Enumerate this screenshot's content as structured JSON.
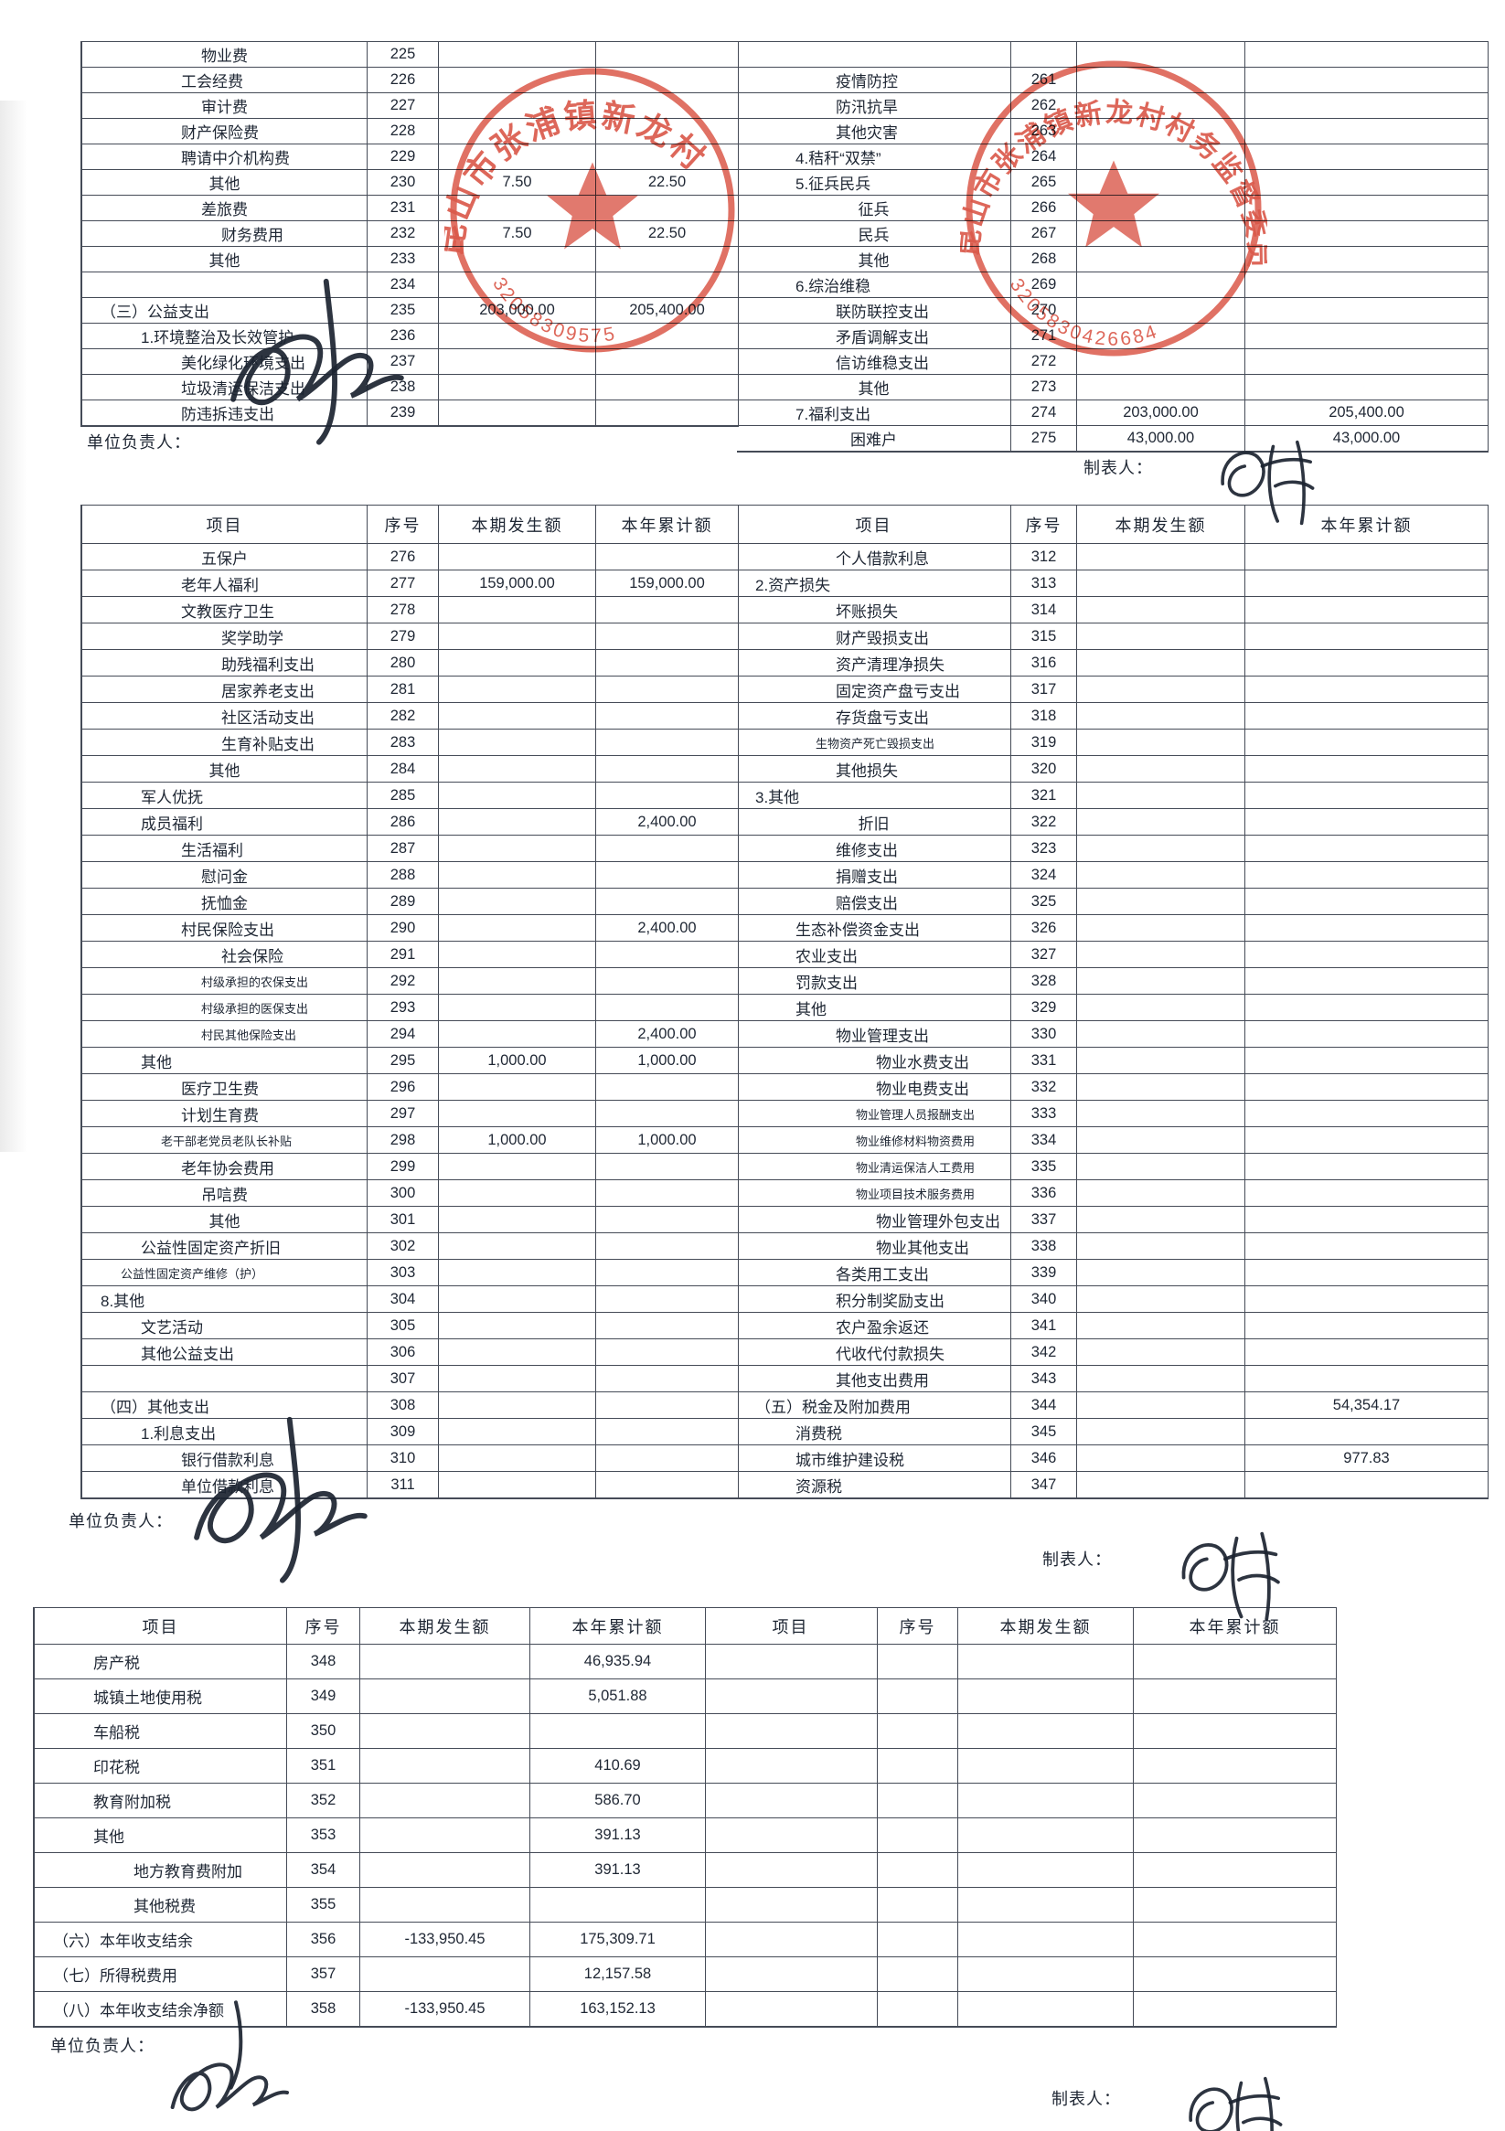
{
  "page": {
    "ink": "#1f2734",
    "line": "#454b57",
    "stamp_red": "#d5402f",
    "paper": "#ffffff"
  },
  "labels": {
    "responsible": "单位负责人：",
    "preparer": "制表人："
  },
  "headers": {
    "item": "项目",
    "no": "序号",
    "current": "本期发生额",
    "cumulative": "本年累计额"
  },
  "stamps": [
    {
      "arc_text": "昆山市张浦镇新龙村",
      "code": "32058309575"
    },
    {
      "arc_text": "昆山市张浦镇新龙村村务监督委员会",
      "code": "3205830426684"
    }
  ],
  "tables": [
    {
      "name": "expense-detail-top",
      "header": false,
      "right_leading_blank": true,
      "left_rows": [
        [
          "物业费",
          "225",
          "",
          "",
          2
        ],
        [
          "工会经费",
          "226",
          "",
          "",
          2
        ],
        [
          "审计费",
          "227",
          "",
          "",
          2
        ],
        [
          "财产保险费",
          "228",
          "",
          "",
          2
        ],
        [
          "聘请中介机构费",
          "229",
          "",
          "",
          2
        ],
        [
          "其他",
          "230",
          "7.50",
          "22.50",
          2
        ],
        [
          "差旅费",
          "231",
          "",
          "",
          3
        ],
        [
          "财务费用",
          "232",
          "7.50",
          "22.50",
          3
        ],
        [
          "其他",
          "233",
          "",
          "",
          3
        ],
        [
          "",
          "234",
          "",
          "",
          0
        ],
        [
          "（三）公益支出",
          "235",
          "203,000.00",
          "205,400.00",
          0
        ],
        [
          "1.环境整治及长效管护",
          "236",
          "",
          "",
          1
        ],
        [
          "美化绿化环境支出",
          "237",
          "",
          "",
          2
        ],
        [
          "垃圾清运保洁支出",
          "238",
          "",
          "",
          2
        ],
        [
          "防违拆违支出",
          "239",
          "",
          "",
          2
        ]
      ],
      "right_rows": [
        [
          "疫情防控",
          "261",
          "",
          "",
          2
        ],
        [
          "防汛抗旱",
          "262",
          "",
          "",
          2
        ],
        [
          "其他灾害",
          "263",
          "",
          "",
          2
        ],
        [
          "4.秸秆“双禁”",
          "264",
          "",
          "",
          1
        ],
        [
          "5.征兵民兵",
          "265",
          "",
          "",
          1
        ],
        [
          "征兵",
          "266",
          "",
          "",
          2
        ],
        [
          "民兵",
          "267",
          "",
          "",
          2
        ],
        [
          "其他",
          "268",
          "",
          "",
          2
        ],
        [
          "6.综治维稳",
          "269",
          "",
          "",
          1
        ],
        [
          "联防联控支出",
          "270",
          "",
          "",
          2
        ],
        [
          "矛盾调解支出",
          "271",
          "",
          "",
          2
        ],
        [
          "信访维稳支出",
          "272",
          "",
          "",
          2
        ],
        [
          "其他",
          "273",
          "",
          "",
          2
        ],
        [
          "7.福利支出",
          "274",
          "203,000.00",
          "205,400.00",
          1
        ],
        [
          "困难户",
          "275",
          "43,000.00",
          "43,000.00",
          2
        ]
      ]
    },
    {
      "name": "expense-detail-middle",
      "header": true,
      "right_leading_blank": false,
      "left_rows": [
        [
          "五保户",
          "276",
          "",
          "",
          2
        ],
        [
          "老年人福利",
          "277",
          "159,000.00",
          "159,000.00",
          2
        ],
        [
          "文教医疗卫生",
          "278",
          "",
          "",
          2
        ],
        [
          "奖学助学",
          "279",
          "",
          "",
          3
        ],
        [
          "助残福利支出",
          "280",
          "",
          "",
          3
        ],
        [
          "居家养老支出",
          "281",
          "",
          "",
          3
        ],
        [
          "社区活动支出",
          "282",
          "",
          "",
          3
        ],
        [
          "生育补贴支出",
          "283",
          "",
          "",
          3
        ],
        [
          "其他",
          "284",
          "",
          "",
          3
        ],
        [
          "军人优抚",
          "285",
          "",
          "",
          1
        ],
        [
          "成员福利",
          "286",
          "",
          "2,400.00",
          1
        ],
        [
          "生活福利",
          "287",
          "",
          "",
          2
        ],
        [
          "慰问金",
          "288",
          "",
          "",
          2
        ],
        [
          "抚恤金",
          "289",
          "",
          "",
          2
        ],
        [
          "村民保险支出",
          "290",
          "",
          "2,400.00",
          2
        ],
        [
          "社会保险",
          "291",
          "",
          "",
          3
        ],
        [
          "村级承担的农保支出",
          "292",
          "",
          "",
          3,
          1
        ],
        [
          "村级承担的医保支出",
          "293",
          "",
          "",
          3,
          1
        ],
        [
          "村民其他保险支出",
          "294",
          "",
          "2,400.00",
          3,
          1
        ],
        [
          "其他",
          "295",
          "1,000.00",
          "1,000.00",
          1
        ],
        [
          "医疗卫生费",
          "296",
          "",
          "",
          2
        ],
        [
          "计划生育费",
          "297",
          "",
          "",
          2
        ],
        [
          "老干部老党员老队长补贴",
          "298",
          "1,000.00",
          "1,000.00",
          2,
          1
        ],
        [
          "老年协会费用",
          "299",
          "",
          "",
          2
        ],
        [
          "吊唁费",
          "300",
          "",
          "",
          2
        ],
        [
          "其他",
          "301",
          "",
          "",
          2
        ],
        [
          "公益性固定资产折旧",
          "302",
          "",
          "",
          1
        ],
        [
          "公益性固定资产维修（护）",
          "303",
          "",
          "",
          1,
          1
        ],
        [
          "8.其他",
          "304",
          "",
          "",
          0
        ],
        [
          "文艺活动",
          "305",
          "",
          "",
          1
        ],
        [
          "其他公益支出",
          "306",
          "",
          "",
          1
        ],
        [
          "",
          "307",
          "",
          "",
          0
        ],
        [
          "（四）其他支出",
          "308",
          "",
          "",
          0
        ],
        [
          "1.利息支出",
          "309",
          "",
          "",
          1
        ],
        [
          "银行借款利息",
          "310",
          "",
          "",
          2
        ],
        [
          "单位借款利息",
          "311",
          "",
          "",
          2
        ]
      ],
      "right_rows": [
        [
          "个人借款利息",
          "312",
          "",
          "",
          2
        ],
        [
          "2.资产损失",
          "313",
          "",
          "",
          0
        ],
        [
          "坏账损失",
          "314",
          "",
          "",
          2
        ],
        [
          "财产毁损支出",
          "315",
          "",
          "",
          2
        ],
        [
          "资产清理净损失",
          "316",
          "",
          "",
          2
        ],
        [
          "固定资产盘亏支出",
          "317",
          "",
          "",
          2
        ],
        [
          "存货盘亏支出",
          "318",
          "",
          "",
          2
        ],
        [
          "生物资产死亡毁损支出",
          "319",
          "",
          "",
          2,
          1
        ],
        [
          "其他损失",
          "320",
          "",
          "",
          2
        ],
        [
          "3.其他",
          "321",
          "",
          "",
          0
        ],
        [
          "折旧",
          "322",
          "",
          "",
          2
        ],
        [
          "维修支出",
          "323",
          "",
          "",
          2
        ],
        [
          "捐赠支出",
          "324",
          "",
          "",
          2
        ],
        [
          "赔偿支出",
          "325",
          "",
          "",
          2
        ],
        [
          "生态补偿资金支出",
          "326",
          "",
          "",
          1
        ],
        [
          "农业支出",
          "327",
          "",
          "",
          1
        ],
        [
          "罚款支出",
          "328",
          "",
          "",
          1
        ],
        [
          "其他",
          "329",
          "",
          "",
          1
        ],
        [
          "物业管理支出",
          "330",
          "",
          "",
          2
        ],
        [
          "物业水费支出",
          "331",
          "",
          "",
          3
        ],
        [
          "物业电费支出",
          "332",
          "",
          "",
          3
        ],
        [
          "物业管理人员报酬支出",
          "333",
          "",
          "",
          3,
          1
        ],
        [
          "物业维修材料物资费用",
          "334",
          "",
          "",
          3,
          1
        ],
        [
          "物业清运保洁人工费用",
          "335",
          "",
          "",
          3,
          1
        ],
        [
          "物业项目技术服务费用",
          "336",
          "",
          "",
          3,
          1
        ],
        [
          "物业管理外包支出",
          "337",
          "",
          "",
          3
        ],
        [
          "物业其他支出",
          "338",
          "",
          "",
          3
        ],
        [
          "各类用工支出",
          "339",
          "",
          "",
          2
        ],
        [
          "积分制奖励支出",
          "340",
          "",
          "",
          2
        ],
        [
          "农户盈余返还",
          "341",
          "",
          "",
          2
        ],
        [
          "代收代付款损失",
          "342",
          "",
          "",
          2
        ],
        [
          "其他支出费用",
          "343",
          "",
          "",
          2
        ],
        [
          "（五）税金及附加费用",
          "344",
          "",
          "54,354.17",
          0
        ],
        [
          "消费税",
          "345",
          "",
          "",
          1
        ],
        [
          "城市维护建设税",
          "346",
          "",
          "977.83",
          1
        ],
        [
          "资源税",
          "347",
          "",
          "",
          1
        ]
      ]
    },
    {
      "name": "expense-detail-bottom",
      "header": true,
      "right_leading_blank": false,
      "left_rows": [
        [
          "房产税",
          "348",
          "",
          "46,935.94",
          1
        ],
        [
          "城镇土地使用税",
          "349",
          "",
          "5,051.88",
          1
        ],
        [
          "车船税",
          "350",
          "",
          "",
          1
        ],
        [
          "印花税",
          "351",
          "",
          "410.69",
          1
        ],
        [
          "教育附加税",
          "352",
          "",
          "586.70",
          1
        ],
        [
          "其他",
          "353",
          "",
          "391.13",
          1
        ],
        [
          "地方教育费附加",
          "354",
          "",
          "391.13",
          2
        ],
        [
          "其他税费",
          "355",
          "",
          "",
          2
        ],
        [
          "（六）本年收支结余",
          "356",
          "-133,950.45",
          "175,309.71",
          0
        ],
        [
          "（七）所得税费用",
          "357",
          "",
          "12,157.58",
          0
        ],
        [
          "（八）本年收支结余净额",
          "358",
          "-133,950.45",
          "163,152.13",
          0
        ]
      ],
      "right_rows": [
        [
          "",
          "",
          "",
          ""
        ],
        [
          "",
          "",
          "",
          ""
        ],
        [
          "",
          "",
          "",
          ""
        ],
        [
          "",
          "",
          "",
          ""
        ],
        [
          "",
          "",
          "",
          ""
        ],
        [
          "",
          "",
          "",
          ""
        ],
        [
          "",
          "",
          "",
          ""
        ],
        [
          "",
          "",
          "",
          ""
        ],
        [
          "",
          "",
          "",
          ""
        ],
        [
          "",
          "",
          "",
          ""
        ],
        [
          "",
          "",
          "",
          ""
        ]
      ]
    }
  ]
}
